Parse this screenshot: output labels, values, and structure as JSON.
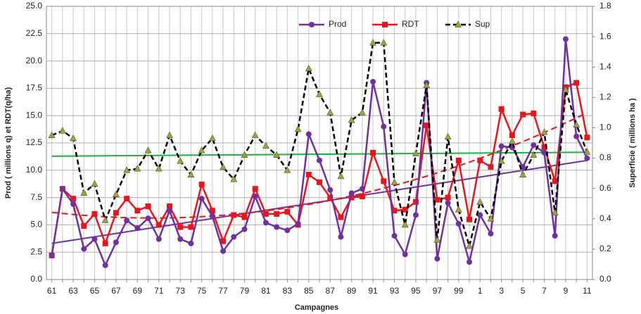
{
  "chart_data": {
    "type": "line",
    "x_label": "Campagnes",
    "y_label": "Prod ( millions q) et RDT(q/ha)",
    "y2_label": "Superficie ( millions ha )",
    "categories": [
      "61",
      null,
      "63",
      null,
      "65",
      null,
      "67",
      null,
      "69",
      null,
      "71",
      null,
      "73",
      null,
      "75",
      null,
      "77",
      null,
      "79",
      null,
      "81",
      null,
      "83",
      null,
      "85",
      null,
      "87",
      null,
      "89",
      null,
      "91",
      null,
      "93",
      null,
      "95",
      null,
      "97",
      null,
      "99",
      null,
      "1",
      null,
      "3",
      null,
      "5",
      null,
      "7",
      null,
      "9",
      null,
      "11"
    ],
    "series": [
      {
        "name": "Prod",
        "color": "#7030a0",
        "marker": "circle",
        "dashed": false,
        "values": [
          2.2,
          8.3,
          6.9,
          2.8,
          3.7,
          1.3,
          3.4,
          5.4,
          4.7,
          5.6,
          3.7,
          6.3,
          3.7,
          3.3,
          7.4,
          5.8,
          2.6,
          3.9,
          4.6,
          7.6,
          5.2,
          4.8,
          4.5,
          5.1,
          13.3,
          10.9,
          8.2,
          3.9,
          7.9,
          8.3,
          18.1,
          14.0,
          4.0,
          2.3,
          5.9,
          18.0,
          1.9,
          7.0,
          5.1,
          1.6,
          5.9,
          4.2,
          12.2,
          12.1,
          10.3,
          12.3,
          11.6,
          4.0,
          22.0,
          13.1,
          11.1
        ]
      },
      {
        "name": "RDT",
        "color": "#e8161b",
        "marker": "square",
        "dashed": false,
        "values": [
          2.2,
          8.3,
          7.4,
          4.9,
          6.0,
          3.3,
          6.1,
          7.4,
          6.3,
          6.7,
          5.0,
          6.7,
          4.8,
          4.8,
          8.7,
          6.3,
          3.5,
          5.9,
          5.7,
          8.3,
          6.0,
          6.0,
          6.2,
          5.0,
          9.6,
          8.9,
          7.5,
          5.7,
          7.5,
          7.6,
          11.6,
          9.0,
          6.3,
          6.4,
          7.1,
          14.1,
          7.3,
          7.5,
          10.9,
          5.5,
          10.9,
          10.3,
          15.6,
          13.2,
          15.1,
          15.2,
          12.1,
          9.0,
          17.6,
          18.0,
          13.0
        ]
      },
      {
        "name": "Sup",
        "color": "#000000",
        "marker": "triangle",
        "marker_color": "#9ea33a",
        "dashed": true,
        "axis": "y2",
        "values": [
          0.95,
          0.98,
          0.93,
          0.57,
          0.63,
          0.39,
          0.56,
          0.72,
          0.73,
          0.85,
          0.73,
          0.95,
          0.78,
          0.69,
          0.85,
          0.93,
          0.74,
          0.66,
          0.82,
          0.95,
          0.88,
          0.82,
          0.72,
          0.99,
          1.39,
          1.22,
          1.1,
          0.68,
          1.05,
          1.1,
          1.56,
          1.56,
          0.64,
          0.36,
          0.83,
          1.28,
          0.26,
          0.94,
          0.46,
          0.22,
          0.51,
          0.4,
          0.78,
          0.91,
          0.69,
          0.82,
          0.97,
          0.44,
          1.25,
          1.02,
          0.84
        ]
      }
    ],
    "trend_lines": [
      {
        "series": 0,
        "degree": 1,
        "color": "#7030a0",
        "dashed": false
      },
      {
        "series": 1,
        "degree": 2,
        "color": "#e8161b",
        "dashed": true
      },
      {
        "series": 2,
        "degree": 1,
        "color": "#20b040",
        "dashed": false
      }
    ],
    "ylim": [
      0,
      25
    ],
    "yticks": [
      {
        "value": 0,
        "label": "0.0"
      },
      {
        "value": 2.5,
        "label": "2.5"
      },
      {
        "value": 5,
        "label": "5.0"
      },
      {
        "value": 7.5,
        "label": "7.5"
      },
      {
        "value": 10,
        "label": "10.0"
      },
      {
        "value": 12.5,
        "label": "12.5"
      },
      {
        "value": 15,
        "label": "15.0"
      },
      {
        "value": 17.5,
        "label": "17.5"
      },
      {
        "value": 20,
        "label": "20.0"
      },
      {
        "value": 22.5,
        "label": "22.5"
      },
      {
        "value": 25,
        "label": "25.0"
      }
    ],
    "y2lim": [
      0,
      1.8
    ],
    "y2ticks": [
      {
        "value": 0,
        "label": "0.0"
      },
      {
        "value": 0.2,
        "label": "0.2"
      },
      {
        "value": 0.4,
        "label": "0.4"
      },
      {
        "value": 0.6,
        "label": "0.6"
      },
      {
        "value": 0.8,
        "label": "0.8"
      },
      {
        "value": 1,
        "label": "1.0"
      },
      {
        "value": 1.2,
        "label": "1.2"
      },
      {
        "value": 1.4,
        "label": "1.4"
      },
      {
        "value": 1.6,
        "label": "1.6"
      },
      {
        "value": 1.8,
        "label": "1.8"
      }
    ],
    "grid": true,
    "legend": "top"
  }
}
